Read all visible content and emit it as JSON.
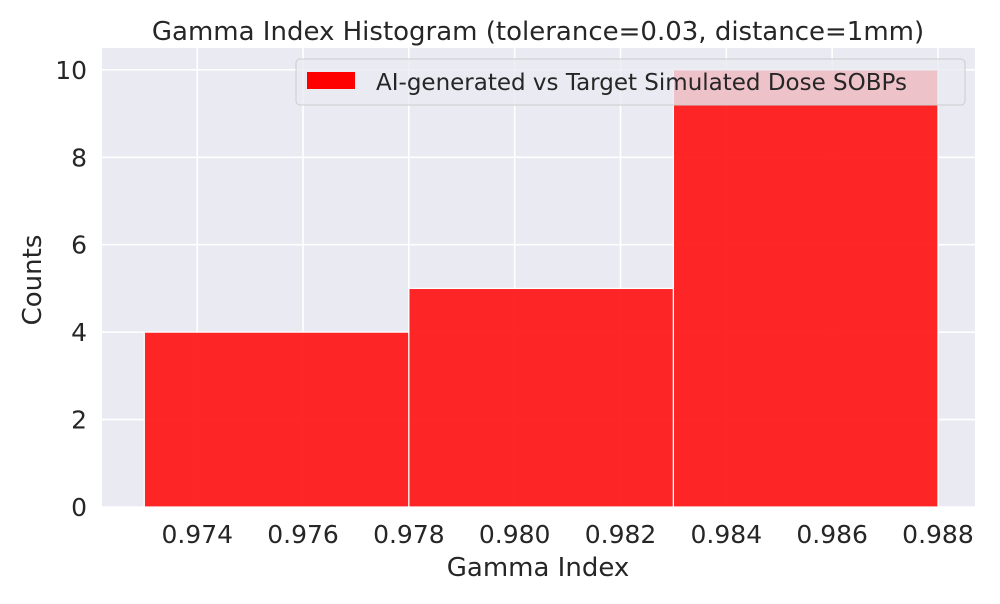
{
  "chart_data": {
    "type": "bar",
    "title": "Gamma Index Histogram (tolerance=0.03, distance=1mm)",
    "xlabel": "Gamma Index",
    "ylabel": "Counts",
    "xlim": [
      0.9722,
      0.9887
    ],
    "ylim": [
      0,
      10.5
    ],
    "x_ticks": [
      0.974,
      0.976,
      0.978,
      0.98,
      0.982,
      0.984,
      0.986,
      0.988
    ],
    "x_tick_labels": [
      "0.974",
      "0.976",
      "0.978",
      "0.980",
      "0.982",
      "0.984",
      "0.986",
      "0.988"
    ],
    "y_ticks": [
      0,
      2,
      4,
      6,
      8,
      10
    ],
    "y_tick_labels": [
      "0",
      "2",
      "4",
      "6",
      "8",
      "10"
    ],
    "bins": [
      {
        "start": 0.973,
        "end": 0.978,
        "count": 4
      },
      {
        "start": 0.978,
        "end": 0.983,
        "count": 5
      },
      {
        "start": 0.983,
        "end": 0.988,
        "count": 10
      }
    ],
    "series": [
      {
        "name": "AI-generated vs Target Simulated Dose SOBPs",
        "color": "#ff0000"
      }
    ],
    "grid": true,
    "legend_position": "upper-right",
    "background_color": "#eaeaf2",
    "bar_color": "#ff1a1a"
  }
}
